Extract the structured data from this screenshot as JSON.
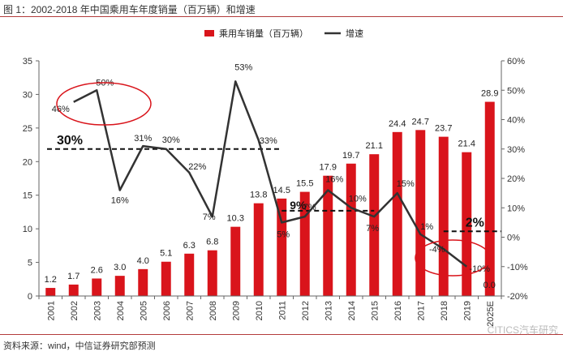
{
  "figure": {
    "title": "图 1：2002-2018 年中国乘用车年度销量（百万辆）和增速",
    "source": "资料来源：wind，中信证券研究部预测",
    "watermark": "CITICS汽车研究"
  },
  "colors": {
    "bar": "#d9141b",
    "line": "#333333",
    "accent": "#d9141b",
    "dash": "#111111"
  },
  "chart_data": {
    "type": "bar",
    "title": "2002-2018 年中国乘用车年度销量（百万辆）和增速",
    "categories": [
      "2001",
      "2002",
      "2003",
      "2004",
      "2005",
      "2006",
      "2007",
      "2008",
      "2009",
      "2010",
      "2011",
      "2012",
      "2013",
      "2014",
      "2015",
      "2016",
      "2017",
      "2018",
      "2019",
      "2025E"
    ],
    "series": [
      {
        "name": "乘用车销量（百万辆）",
        "type": "bar",
        "axis": "left",
        "values": [
          1.2,
          1.7,
          2.6,
          3.0,
          4.0,
          5.1,
          6.3,
          6.8,
          10.3,
          13.8,
          14.5,
          15.5,
          17.9,
          19.7,
          21.1,
          24.4,
          24.7,
          23.7,
          21.4,
          28.9
        ],
        "labels": [
          "1.2",
          "1.7",
          "2.6",
          "3.0",
          "4.0",
          "5.1",
          "6.3",
          "6.8",
          "10.3",
          "13.8",
          "14.5",
          "15.5",
          "17.9",
          "19.7",
          "21.1",
          "24.4",
          "24.7",
          "23.7",
          "21.4",
          "28.9"
        ]
      },
      {
        "name": "增速",
        "type": "line",
        "axis": "right",
        "x": [
          "2002",
          "2003",
          "2004",
          "2005",
          "2006",
          "2007",
          "2008",
          "2009",
          "2010",
          "2011",
          "2012",
          "2013",
          "2014",
          "2015",
          "2016",
          "2017",
          "2018",
          "2019"
        ],
        "values": [
          46,
          50,
          16,
          31,
          30,
          22,
          7,
          53,
          33,
          5,
          7,
          16,
          10,
          7,
          15,
          1,
          -4,
          -10
        ],
        "labels": [
          "46%",
          "50%",
          "16%",
          "31%",
          "30%",
          "22%",
          "7%",
          "53%",
          "33%",
          "5%",
          "7%",
          "16%",
          "10%",
          "7%",
          "15%",
          "1%",
          "-4%",
          "-10%"
        ]
      }
    ],
    "extra_labels": [
      "0.0"
    ],
    "y_left": {
      "min": 0,
      "max": 35,
      "ticks": [
        "0",
        "5",
        "10",
        "15",
        "20",
        "25",
        "30",
        "35"
      ]
    },
    "y_right": {
      "min": -20,
      "max": 60,
      "ticks": [
        "-20%",
        "-10%",
        "0%",
        "10%",
        "20%",
        "30%",
        "40%",
        "50%",
        "60%"
      ]
    },
    "reference_lines": [
      {
        "label": "30%",
        "value": 30,
        "from": "2001",
        "to": "2011"
      },
      {
        "label": "9%",
        "value": 9,
        "from": "2011",
        "to": "2015"
      },
      {
        "label": "2%",
        "value": 2,
        "from": "2018",
        "to": "2025E"
      }
    ],
    "legend": [
      "乘用车销量（百万辆）",
      "增速"
    ],
    "legend_position": "top-right"
  }
}
